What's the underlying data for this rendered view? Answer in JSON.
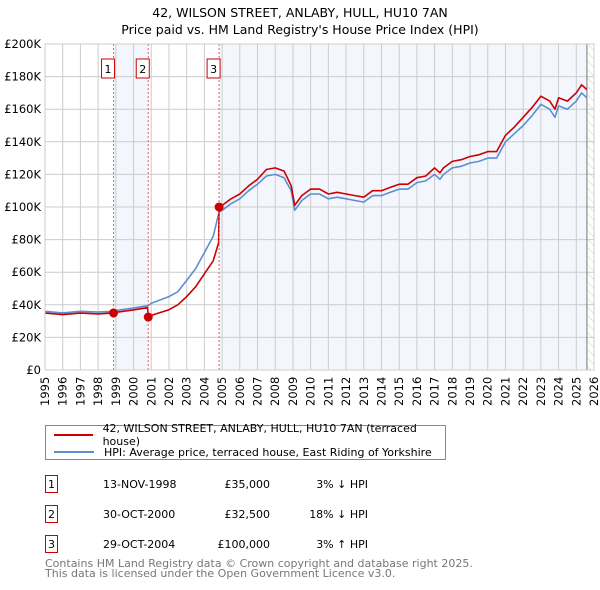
{
  "chart_data": {
    "type": "line",
    "title": "42, WILSON STREET, ANLABY, HULL, HU10 7AN",
    "subtitle": "Price paid vs. HM Land Registry's House Price Index (HPI)",
    "xlim": [
      1995,
      2026
    ],
    "ylim": [
      0,
      200000
    ],
    "y_ticks": [
      {
        "value": 0,
        "label": "£0"
      },
      {
        "value": 20000,
        "label": "£20K"
      },
      {
        "value": 40000,
        "label": "£40K"
      },
      {
        "value": 60000,
        "label": "£60K"
      },
      {
        "value": 80000,
        "label": "£80K"
      },
      {
        "value": 100000,
        "label": "£100K"
      },
      {
        "value": 120000,
        "label": "£120K"
      },
      {
        "value": 140000,
        "label": "£140K"
      },
      {
        "value": 160000,
        "label": "£160K"
      },
      {
        "value": 180000,
        "label": "£180K"
      },
      {
        "value": 200000,
        "label": "£200K"
      }
    ],
    "x_ticks": [
      "1995",
      "1996",
      "1997",
      "1998",
      "1999",
      "2000",
      "2001",
      "2002",
      "2003",
      "2004",
      "2005",
      "2006",
      "2007",
      "2008",
      "2009",
      "2010",
      "2011",
      "2012",
      "2013",
      "2014",
      "2015",
      "2016",
      "2017",
      "2018",
      "2019",
      "2020",
      "2021",
      "2022",
      "2023",
      "2024",
      "2025",
      "2026"
    ],
    "grid": true,
    "legend_placement": "below",
    "data_end_year": 2025.6,
    "series": [
      {
        "name": "42, WILSON STREET, ANLABY, HULL, HU10 7AN (terraced house)",
        "color": "#cc0000",
        "x": [
          1995,
          1996,
          1997,
          1998,
          1998.87,
          1999,
          2000,
          2000.8,
          2000.83,
          2001,
          2002,
          2002.5,
          2003,
          2003.5,
          2004,
          2004.5,
          2004.8,
          2004.83,
          2005,
          2005.5,
          2006,
          2006.5,
          2007,
          2007.5,
          2008,
          2008.5,
          2008.9,
          2009.1,
          2009.5,
          2010,
          2010.5,
          2011,
          2011.5,
          2012,
          2012.5,
          2013,
          2013.5,
          2014,
          2014.5,
          2015,
          2015.5,
          2016,
          2016.5,
          2017,
          2017.3,
          2017.5,
          2018,
          2018.5,
          2019,
          2019.5,
          2020,
          2020.5,
          2021,
          2021.5,
          2022,
          2022.5,
          2023,
          2023.5,
          2023.8,
          2024,
          2024.5,
          2025,
          2025.3,
          2025.6
        ],
        "y": [
          34.9,
          34,
          34.9,
          34.4,
          35,
          35.4,
          36.9,
          38.3,
          32.5,
          33.5,
          37,
          40,
          45,
          51,
          59,
          67,
          78,
          100,
          101,
          105,
          108,
          113,
          117,
          123,
          124,
          122,
          113,
          101,
          107,
          111,
          111,
          108,
          109,
          108,
          107,
          106,
          110,
          110,
          112,
          114,
          114,
          118,
          119,
          124,
          121,
          124,
          128,
          129,
          131,
          132,
          134,
          134,
          144,
          149,
          155,
          161,
          168,
          165,
          160,
          167,
          165,
          170,
          175,
          172
        ],
        "y_unit": "thousand GBP"
      },
      {
        "name": "HPI: Average price, terraced house, East Riding of Yorkshire",
        "color": "#5b8fd0",
        "x": [
          1995,
          1996,
          1997,
          1998,
          1998.87,
          1999,
          2000,
          2000.83,
          2001,
          2002,
          2002.5,
          2003,
          2003.5,
          2004,
          2004.5,
          2004.83,
          2005,
          2005.5,
          2006,
          2006.5,
          2007,
          2007.5,
          2008,
          2008.5,
          2008.9,
          2009.1,
          2009.5,
          2010,
          2010.5,
          2011,
          2011.5,
          2012,
          2012.5,
          2013,
          2013.5,
          2014,
          2014.5,
          2015,
          2015.5,
          2016,
          2016.5,
          2017,
          2017.3,
          2017.5,
          2018,
          2018.5,
          2019,
          2019.5,
          2020,
          2020.5,
          2021,
          2021.5,
          2022,
          2022.5,
          2023,
          2023.5,
          2023.8,
          2024,
          2024.5,
          2025,
          2025.3,
          2025.6
        ],
        "y": [
          36,
          35,
          36,
          35.5,
          36,
          36.5,
          38,
          39.5,
          41,
          45,
          48,
          55,
          62,
          72,
          82,
          97,
          98,
          102,
          105,
          110,
          114,
          119,
          120,
          118,
          110,
          98,
          104,
          108,
          108,
          105,
          106,
          105,
          104,
          103,
          107,
          107,
          109,
          111,
          111,
          115,
          116,
          120,
          117,
          120,
          124,
          125,
          127,
          128,
          130,
          130,
          140,
          145,
          150,
          156,
          163,
          160,
          155,
          162,
          160,
          165,
          170,
          167
        ],
        "y_unit": "thousand GBP"
      }
    ],
    "sales": [
      {
        "num": "1",
        "year": 1998.87,
        "date": "13-NOV-1998",
        "price_value": 35000,
        "price": "£35,000",
        "hpi": "3% ↓ HPI"
      },
      {
        "num": "2",
        "year": 2000.83,
        "date": "30-OCT-2000",
        "price_value": 32500,
        "price": "£32,500",
        "hpi": "18% ↓ HPI"
      },
      {
        "num": "3",
        "year": 2004.83,
        "date": "29-OCT-2004",
        "price_value": 100000,
        "price": "£100,000",
        "hpi": "3% ↑ HPI"
      }
    ]
  },
  "footer": {
    "line1": "Contains HM Land Registry data © Crown copyright and database right 2025.",
    "line2": "This data is licensed under the Open Government Licence v3.0."
  }
}
